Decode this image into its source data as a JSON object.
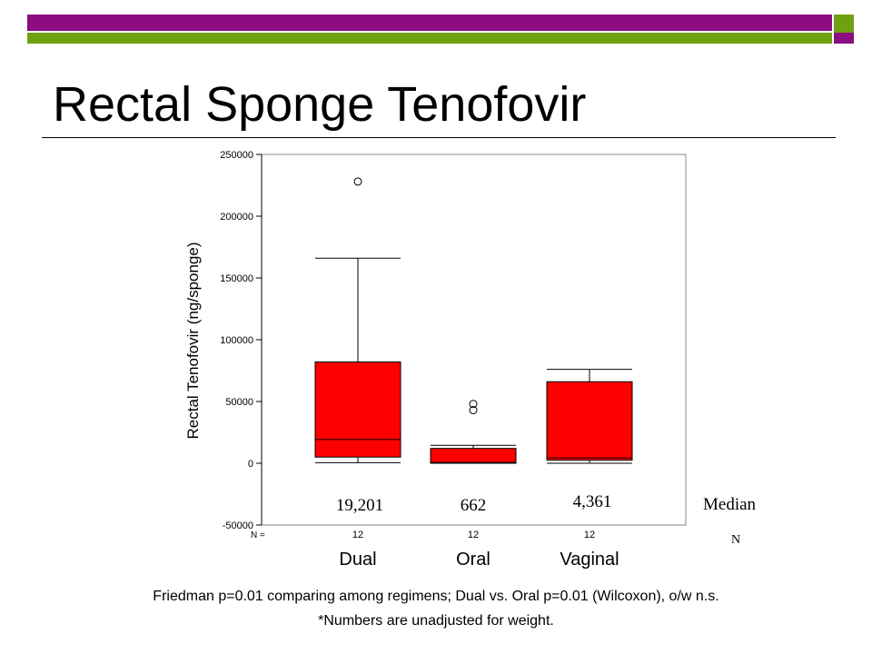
{
  "slide": {
    "title": "Rectal Sponge Tenofovir",
    "footnote_1": "Friedman p=0.01 comparing among regimens; Dual vs. Oral p=0.01 (Wilcoxon), o/w n.s.",
    "footnote_2": "*Numbers are unadjusted for weight.",
    "accent_purple": "#8b0d7f",
    "accent_green": "#6fa012"
  },
  "chart_data": {
    "type": "boxplot",
    "title": "",
    "ylabel": "Rectal Tenofovir (ng/sponge)",
    "xlabel": "",
    "ylim": [
      -50000,
      250000
    ],
    "yticks": [
      250000,
      200000,
      150000,
      100000,
      50000,
      0,
      -50000
    ],
    "n_label": "N =",
    "box_color": "#ff0000",
    "categories": [
      "Dual",
      "Oral",
      "Vaginal"
    ],
    "n": [
      "12",
      "12",
      "12"
    ],
    "median_labels": [
      "19,201",
      "662",
      "4,361"
    ],
    "median_legend": "Median",
    "n_legend": "N",
    "boxes": [
      {
        "whisker_low": 500,
        "q1": 5000,
        "median": 19201,
        "q3": 82000,
        "whisker_high": 166000,
        "outliers": [
          228000
        ]
      },
      {
        "whisker_low": 0,
        "q1": 0,
        "median": 662,
        "q3": 12000,
        "whisker_high": 14500,
        "outliers": [
          48000,
          43000
        ]
      },
      {
        "whisker_low": 0,
        "q1": 2500,
        "median": 4361,
        "q3": 66000,
        "whisker_high": 76000,
        "outliers": []
      }
    ]
  }
}
